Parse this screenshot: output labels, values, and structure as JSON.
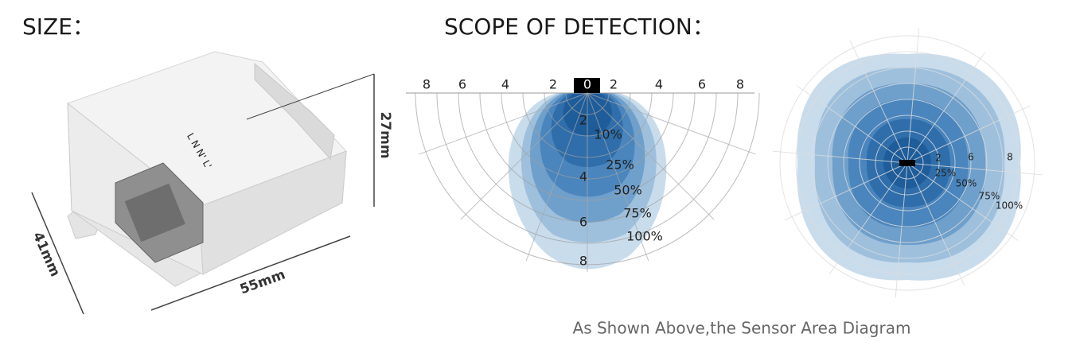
{
  "header": {
    "size_title": "SIZE：",
    "scope_title": "SCOPE OF DETECTION："
  },
  "device": {
    "terminal_labels": "L N N' L'",
    "height": "27mm",
    "depth": "41mm",
    "width": "55mm"
  },
  "side_view": {
    "distance_labels": [
      "8",
      "6",
      "4",
      "2",
      "0",
      "2",
      "4",
      "6",
      "8"
    ],
    "depth_labels": [
      "2",
      "4",
      "6",
      "8"
    ],
    "sensitivity_labels": [
      "10%",
      "25%",
      "50%",
      "75%",
      "100%"
    ]
  },
  "top_view": {
    "ring_labels": [
      "2",
      "6",
      "8"
    ],
    "sensitivity_labels": [
      "25%",
      "50%",
      "75%",
      "100%"
    ]
  },
  "caption": "As Shown Above,the Sensor Area Diagram"
}
